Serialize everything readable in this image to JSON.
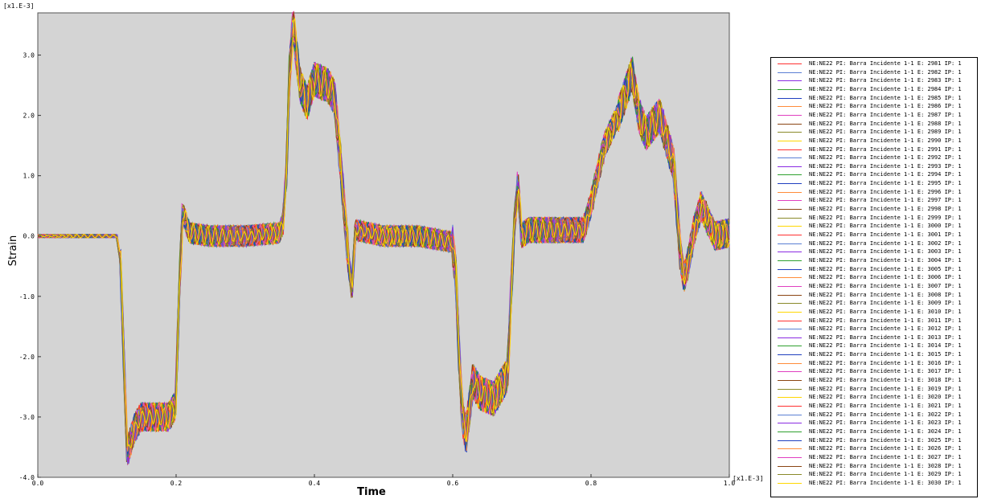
{
  "chart_data": {
    "type": "line",
    "xlabel": "Time",
    "ylabel": "Strain",
    "x_multiplier": "[x1.E-3]",
    "y_multiplier": "[x1.E-3]",
    "xlim": [
      0.0,
      1.0
    ],
    "ylim": [
      -4.0,
      3.7
    ],
    "x_ticks": [
      "0.0",
      "0.2",
      "0.4",
      "0.6",
      "0.8",
      "1.0"
    ],
    "y_ticks": [
      "3.0",
      "2.0",
      "1.0",
      "0.0",
      "-1.0",
      "-2.0",
      "-3.0",
      "-4.0"
    ],
    "grid": false,
    "legend_position": "right",
    "envelope": {
      "x": [
        0.0,
        0.115,
        0.12,
        0.125,
        0.13,
        0.14,
        0.15,
        0.17,
        0.19,
        0.2,
        0.205,
        0.21,
        0.22,
        0.25,
        0.3,
        0.35,
        0.355,
        0.36,
        0.365,
        0.37,
        0.38,
        0.39,
        0.4,
        0.42,
        0.43,
        0.44,
        0.45,
        0.455,
        0.46,
        0.5,
        0.55,
        0.6,
        0.605,
        0.61,
        0.615,
        0.62,
        0.63,
        0.64,
        0.66,
        0.68,
        0.685,
        0.69,
        0.695,
        0.7,
        0.71,
        0.75,
        0.79,
        0.8,
        0.82,
        0.84,
        0.86,
        0.87,
        0.88,
        0.9,
        0.91,
        0.92,
        0.93,
        0.935,
        0.94,
        0.95,
        0.96,
        0.98,
        1.0
      ],
      "y": [
        0.0,
        0.0,
        -0.4,
        -2.0,
        -3.6,
        -3.2,
        -3.0,
        -3.0,
        -3.0,
        -2.8,
        -1.0,
        0.4,
        0.05,
        0.0,
        0.0,
        0.05,
        0.2,
        1.0,
        2.8,
        3.5,
        2.5,
        2.2,
        2.6,
        2.5,
        2.3,
        1.0,
        -0.4,
        -0.9,
        0.1,
        0.0,
        0.0,
        -0.1,
        -0.6,
        -2.0,
        -3.0,
        -3.3,
        -2.4,
        -2.6,
        -2.7,
        -2.3,
        -1.0,
        0.2,
        0.9,
        0.0,
        0.1,
        0.1,
        0.1,
        0.5,
        1.5,
        2.0,
        2.7,
        2.0,
        1.7,
        2.0,
        1.6,
        1.2,
        -0.3,
        -0.7,
        -0.5,
        0.1,
        0.5,
        0.0,
        0.05
      ]
    },
    "series": [
      {
        "name": "NE:NE22 PI: Barra Incidente 1-1 E: 2981 IP: 1",
        "color": "#ff3030"
      },
      {
        "name": "NE:NE22 PI: Barra Incidente 1-1 E: 2982 IP: 1",
        "color": "#5b7fd4"
      },
      {
        "name": "NE:NE22 PI: Barra Incidente 1-1 E: 2983 IP: 1",
        "color": "#8a2be2"
      },
      {
        "name": "NE:NE22 PI: Barra Incidente 1-1 E: 2984 IP: 1",
        "color": "#2ea02e"
      },
      {
        "name": "NE:NE22 PI: Barra Incidente 1-1 E: 2985 IP: 1",
        "color": "#1f3fbf"
      },
      {
        "name": "NE:NE22 PI: Barra Incidente 1-1 E: 2986 IP: 1",
        "color": "#ff8c3a"
      },
      {
        "name": "NE:NE22 PI: Barra Incidente 1-1 E: 2987 IP: 1",
        "color": "#e040c0"
      },
      {
        "name": "NE:NE22 PI: Barra Incidente 1-1 E: 2988 IP: 1",
        "color": "#8b4513"
      },
      {
        "name": "NE:NE22 PI: Barra Incidente 1-1 E: 2989 IP: 1",
        "color": "#8a8a2a"
      },
      {
        "name": "NE:NE22 PI: Barra Incidente 1-1 E: 2990 IP: 1",
        "color": "#ffd700"
      },
      {
        "name": "NE:NE22 PI: Barra Incidente 1-1 E: 2991 IP: 1",
        "color": "#ff3030"
      },
      {
        "name": "NE:NE22 PI: Barra Incidente 1-1 E: 2992 IP: 1",
        "color": "#5b7fd4"
      },
      {
        "name": "NE:NE22 PI: Barra Incidente 1-1 E: 2993 IP: 1",
        "color": "#8a2be2"
      },
      {
        "name": "NE:NE22 PI: Barra Incidente 1-1 E: 2994 IP: 1",
        "color": "#2ea02e"
      },
      {
        "name": "NE:NE22 PI: Barra Incidente 1-1 E: 2995 IP: 1",
        "color": "#1f3fbf"
      },
      {
        "name": "NE:NE22 PI: Barra Incidente 1-1 E: 2996 IP: 1",
        "color": "#ff8c3a"
      },
      {
        "name": "NE:NE22 PI: Barra Incidente 1-1 E: 2997 IP: 1",
        "color": "#e040c0"
      },
      {
        "name": "NE:NE22 PI: Barra Incidente 1-1 E: 2998 IP: 1",
        "color": "#8b4513"
      },
      {
        "name": "NE:NE22 PI: Barra Incidente 1-1 E: 2999 IP: 1",
        "color": "#8a8a2a"
      },
      {
        "name": "NE:NE22 PI: Barra Incidente 1-1 E: 3000 IP: 1",
        "color": "#ffd700"
      },
      {
        "name": "NE:NE22 PI: Barra Incidente 1-1 E: 3001 IP: 1",
        "color": "#ff3030"
      },
      {
        "name": "NE:NE22 PI: Barra Incidente 1-1 E: 3002 IP: 1",
        "color": "#5b7fd4"
      },
      {
        "name": "NE:NE22 PI: Barra Incidente 1-1 E: 3003 IP: 1",
        "color": "#8a2be2"
      },
      {
        "name": "NE:NE22 PI: Barra Incidente 1-1 E: 3004 IP: 1",
        "color": "#2ea02e"
      },
      {
        "name": "NE:NE22 PI: Barra Incidente 1-1 E: 3005 IP: 1",
        "color": "#1f3fbf"
      },
      {
        "name": "NE:NE22 PI: Barra Incidente 1-1 E: 3006 IP: 1",
        "color": "#ff8c3a"
      },
      {
        "name": "NE:NE22 PI: Barra Incidente 1-1 E: 3007 IP: 1",
        "color": "#e040c0"
      },
      {
        "name": "NE:NE22 PI: Barra Incidente 1-1 E: 3008 IP: 1",
        "color": "#8b4513"
      },
      {
        "name": "NE:NE22 PI: Barra Incidente 1-1 E: 3009 IP: 1",
        "color": "#8a8a2a"
      },
      {
        "name": "NE:NE22 PI: Barra Incidente 1-1 E: 3010 IP: 1",
        "color": "#ffd700"
      },
      {
        "name": "NE:NE22 PI: Barra Incidente 1-1 E: 3011 IP: 1",
        "color": "#ff3030"
      },
      {
        "name": "NE:NE22 PI: Barra Incidente 1-1 E: 3012 IP: 1",
        "color": "#5b7fd4"
      },
      {
        "name": "NE:NE22 PI: Barra Incidente 1-1 E: 3013 IP: 1",
        "color": "#8a2be2"
      },
      {
        "name": "NE:NE22 PI: Barra Incidente 1-1 E: 3014 IP: 1",
        "color": "#2ea02e"
      },
      {
        "name": "NE:NE22 PI: Barra Incidente 1-1 E: 3015 IP: 1",
        "color": "#1f3fbf"
      },
      {
        "name": "NE:NE22 PI: Barra Incidente 1-1 E: 3016 IP: 1",
        "color": "#ff8c3a"
      },
      {
        "name": "NE:NE22 PI: Barra Incidente 1-1 E: 3017 IP: 1",
        "color": "#e040c0"
      },
      {
        "name": "NE:NE22 PI: Barra Incidente 1-1 E: 3018 IP: 1",
        "color": "#8b4513"
      },
      {
        "name": "NE:NE22 PI: Barra Incidente 1-1 E: 3019 IP: 1",
        "color": "#8a8a2a"
      },
      {
        "name": "NE:NE22 PI: Barra Incidente 1-1 E: 3020 IP: 1",
        "color": "#ffd700"
      },
      {
        "name": "NE:NE22 PI: Barra Incidente 1-1 E: 3021 IP: 1",
        "color": "#ff3030"
      },
      {
        "name": "NE:NE22 PI: Barra Incidente 1-1 E: 3022 IP: 1",
        "color": "#5b7fd4"
      },
      {
        "name": "NE:NE22 PI: Barra Incidente 1-1 E: 3023 IP: 1",
        "color": "#8a2be2"
      },
      {
        "name": "NE:NE22 PI: Barra Incidente 1-1 E: 3024 IP: 1",
        "color": "#2ea02e"
      },
      {
        "name": "NE:NE22 PI: Barra Incidente 1-1 E: 3025 IP: 1",
        "color": "#1f3fbf"
      },
      {
        "name": "NE:NE22 PI: Barra Incidente 1-1 E: 3026 IP: 1",
        "color": "#ff8c3a"
      },
      {
        "name": "NE:NE22 PI: Barra Incidente 1-1 E: 3027 IP: 1",
        "color": "#e040c0"
      },
      {
        "name": "NE:NE22 PI: Barra Incidente 1-1 E: 3028 IP: 1",
        "color": "#8b4513"
      },
      {
        "name": "NE:NE22 PI: Barra Incidente 1-1 E: 3029 IP: 1",
        "color": "#8a8a2a"
      },
      {
        "name": "NE:NE22 PI: Barra Incidente 1-1 E: 3030 IP: 1",
        "color": "#ffd700"
      }
    ]
  }
}
